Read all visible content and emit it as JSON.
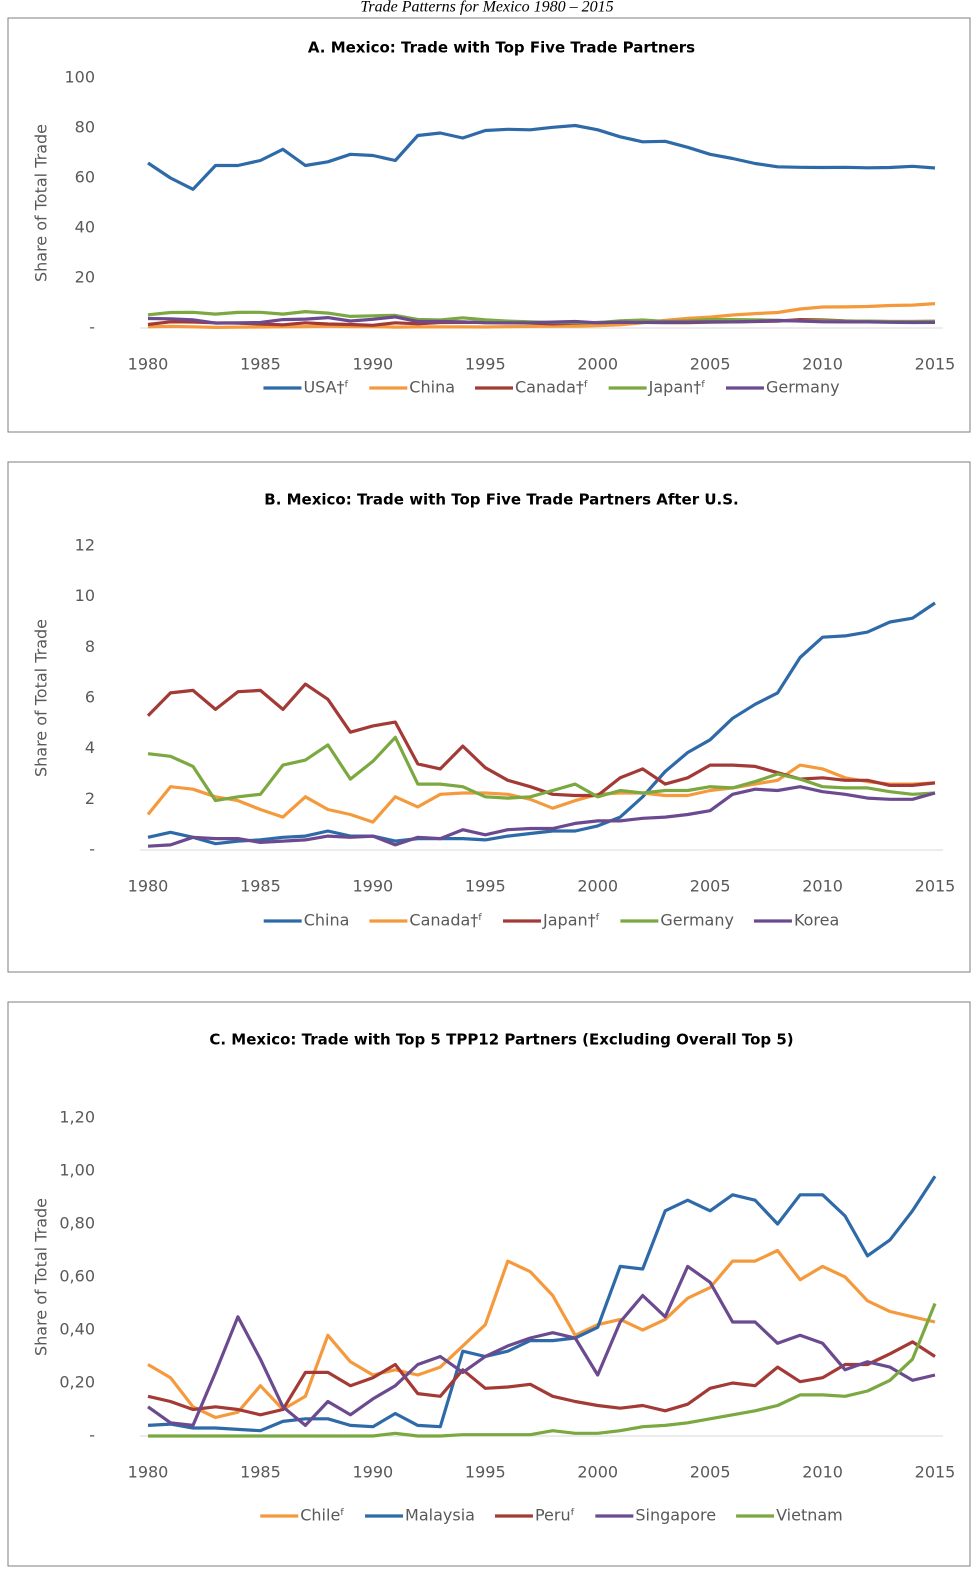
{
  "title": "Trade Patterns for Mexico 1980 – 2015",
  "chart_data": [
    {
      "type": "line",
      "title": "A. Mexico: Trade with Top Five Trade Partners",
      "y_label": "Share of Total Trade",
      "x": [
        1980,
        1981,
        1982,
        1983,
        1984,
        1985,
        1986,
        1987,
        1988,
        1989,
        1990,
        1991,
        1992,
        1993,
        1994,
        1995,
        1996,
        1997,
        1998,
        1999,
        2000,
        2001,
        2002,
        2003,
        2004,
        2005,
        2006,
        2007,
        2008,
        2009,
        2010,
        2011,
        2012,
        2013,
        2014,
        2015
      ],
      "xlim": [
        1980,
        2015
      ],
      "xticks": [
        1980,
        1985,
        1990,
        1995,
        2000,
        2005,
        2010,
        2015
      ],
      "ylim": [
        0,
        100
      ],
      "yticks": [
        {
          "value": 0,
          "label": "-"
        },
        20,
        40,
        60,
        80,
        100
      ],
      "grid": false,
      "legend": "bottom",
      "series": [
        {
          "name": "USA†ᶠ",
          "color": "#2e6aa8",
          "values": [
            66,
            60,
            55.5,
            65,
            65,
            67,
            71.5,
            65,
            66.5,
            69.5,
            69,
            67,
            77,
            78,
            76,
            79,
            79.5,
            79.3,
            80.3,
            81,
            79.3,
            76.5,
            74.5,
            74.7,
            72.3,
            69.5,
            67.8,
            65.8,
            64.5,
            64.3,
            64.2,
            64.3,
            64.1,
            64.2,
            64.7,
            64
          ]
        },
        {
          "name": "China",
          "color": "#f59a3c",
          "values": [
            0.5,
            0.7,
            0.5,
            0.25,
            0.35,
            0.4,
            0.5,
            0.55,
            0.75,
            0.55,
            0.55,
            0.35,
            0.45,
            0.45,
            0.45,
            0.4,
            0.55,
            0.65,
            0.75,
            0.75,
            0.95,
            1.3,
            2.1,
            3.1,
            3.85,
            4.35,
            5.2,
            5.75,
            6.2,
            7.6,
            8.4,
            8.45,
            8.6,
            9,
            9.15,
            9.75
          ]
        },
        {
          "name": "Canada†ᶠ",
          "color": "#a33a35",
          "values": [
            1.4,
            2.5,
            2.4,
            2.1,
            1.95,
            1.6,
            1.3,
            2.1,
            1.6,
            1.4,
            1.1,
            2.1,
            1.7,
            2.2,
            2.25,
            2.25,
            2.2,
            2,
            1.65,
            1.95,
            2.2,
            2.25,
            2.25,
            2.15,
            2.15,
            2.35,
            2.45,
            2.6,
            2.75,
            3.35,
            3.2,
            2.85,
            2.7,
            2.6,
            2.6,
            2.65
          ]
        },
        {
          "name": "Japan†ᶠ",
          "color": "#7ba840",
          "values": [
            5.3,
            6.2,
            6.3,
            5.55,
            6.25,
            6.3,
            5.55,
            6.55,
            5.95,
            4.65,
            4.9,
            5.05,
            3.4,
            3.2,
            4.1,
            3.25,
            2.75,
            2.5,
            2.2,
            2.15,
            2.15,
            2.85,
            3.2,
            2.6,
            2.85,
            3.35,
            3.35,
            3.3,
            3.05,
            2.8,
            2.85,
            2.75,
            2.75,
            2.55,
            2.55,
            2.65
          ]
        },
        {
          "name": "Germany",
          "color": "#6b4a8f",
          "values": [
            3.8,
            3.7,
            3.3,
            1.95,
            2.1,
            2.2,
            3.35,
            3.55,
            4.15,
            2.8,
            3.5,
            4.45,
            2.6,
            2.6,
            2.5,
            2.1,
            2.05,
            2.1,
            2.35,
            2.6,
            2.1,
            2.35,
            2.25,
            2.35,
            2.35,
            2.5,
            2.45,
            2.7,
            3,
            2.8,
            2.5,
            2.45,
            2.45,
            2.3,
            2.2,
            2.25
          ]
        }
      ]
    },
    {
      "type": "line",
      "title": "B. Mexico: Trade with Top Five Trade Partners After U.S.",
      "y_label": "Share of Total Trade",
      "x": [
        1980,
        1981,
        1982,
        1983,
        1984,
        1985,
        1986,
        1987,
        1988,
        1989,
        1990,
        1991,
        1992,
        1993,
        1994,
        1995,
        1996,
        1997,
        1998,
        1999,
        2000,
        2001,
        2002,
        2003,
        2004,
        2005,
        2006,
        2007,
        2008,
        2009,
        2010,
        2011,
        2012,
        2013,
        2014,
        2015
      ],
      "xlim": [
        1980,
        2015
      ],
      "xticks": [
        1980,
        1985,
        1990,
        1995,
        2000,
        2005,
        2010,
        2015
      ],
      "ylim": [
        0,
        12
      ],
      "yticks": [
        {
          "value": 0,
          "label": "-"
        },
        2,
        4,
        6,
        8,
        10,
        12
      ],
      "grid": false,
      "legend": "bottom",
      "series": [
        {
          "name": "China",
          "color": "#2e6aa8",
          "values": [
            0.5,
            0.7,
            0.5,
            0.25,
            0.35,
            0.4,
            0.5,
            0.55,
            0.75,
            0.55,
            0.55,
            0.35,
            0.45,
            0.45,
            0.45,
            0.4,
            0.55,
            0.65,
            0.75,
            0.75,
            0.95,
            1.3,
            2.1,
            3.1,
            3.85,
            4.35,
            5.2,
            5.75,
            6.2,
            7.6,
            8.4,
            8.45,
            8.6,
            9,
            9.15,
            9.75
          ]
        },
        {
          "name": "Canada†ᶠ",
          "color": "#f59a3c",
          "values": [
            1.4,
            2.5,
            2.4,
            2.1,
            1.95,
            1.6,
            1.3,
            2.1,
            1.6,
            1.4,
            1.1,
            2.1,
            1.7,
            2.2,
            2.25,
            2.25,
            2.2,
            2,
            1.65,
            1.95,
            2.2,
            2.25,
            2.25,
            2.15,
            2.15,
            2.35,
            2.45,
            2.6,
            2.75,
            3.35,
            3.2,
            2.85,
            2.7,
            2.6,
            2.6,
            2.65
          ]
        },
        {
          "name": "Japan†ᶠ",
          "color": "#a33a35",
          "values": [
            5.3,
            6.2,
            6.3,
            5.55,
            6.25,
            6.3,
            5.55,
            6.55,
            5.95,
            4.65,
            4.9,
            5.05,
            3.4,
            3.2,
            4.1,
            3.25,
            2.75,
            2.5,
            2.2,
            2.15,
            2.15,
            2.85,
            3.2,
            2.6,
            2.85,
            3.35,
            3.35,
            3.3,
            3.05,
            2.8,
            2.85,
            2.75,
            2.75,
            2.55,
            2.55,
            2.65
          ]
        },
        {
          "name": "Germany",
          "color": "#7ba840",
          "values": [
            3.8,
            3.7,
            3.3,
            1.95,
            2.1,
            2.2,
            3.35,
            3.55,
            4.15,
            2.8,
            3.5,
            4.45,
            2.6,
            2.6,
            2.5,
            2.1,
            2.05,
            2.1,
            2.35,
            2.6,
            2.1,
            2.35,
            2.25,
            2.35,
            2.35,
            2.5,
            2.45,
            2.7,
            3,
            2.8,
            2.5,
            2.45,
            2.45,
            2.3,
            2.2,
            2.25
          ]
        },
        {
          "name": "Korea",
          "color": "#6b4a8f",
          "values": [
            0.15,
            0.2,
            0.5,
            0.45,
            0.45,
            0.3,
            0.35,
            0.4,
            0.55,
            0.5,
            0.55,
            0.2,
            0.5,
            0.45,
            0.8,
            0.6,
            0.8,
            0.85,
            0.85,
            1.05,
            1.15,
            1.15,
            1.25,
            1.3,
            1.4,
            1.55,
            2.2,
            2.4,
            2.35,
            2.5,
            2.3,
            2.2,
            2.05,
            2,
            2,
            2.25
          ]
        }
      ]
    },
    {
      "type": "line",
      "title": "C. Mexico: Trade with Top 5 TPP12 Partners (Excluding Overall Top 5)",
      "y_label": "Share of Total Trade",
      "x": [
        1980,
        1981,
        1982,
        1983,
        1984,
        1985,
        1986,
        1987,
        1988,
        1989,
        1990,
        1991,
        1992,
        1993,
        1994,
        1995,
        1996,
        1997,
        1998,
        1999,
        2000,
        2001,
        2002,
        2003,
        2004,
        2005,
        2006,
        2007,
        2008,
        2009,
        2010,
        2011,
        2012,
        2013,
        2014,
        2015
      ],
      "xlim": [
        1980,
        2015
      ],
      "xticks": [
        1980,
        1985,
        1990,
        1995,
        2000,
        2005,
        2010,
        2015
      ],
      "ylim": [
        0,
        1.2
      ],
      "yticks": [
        {
          "value": 0,
          "label": "-"
        },
        {
          "value": 0.2,
          "label": "0,20"
        },
        {
          "value": 0.4,
          "label": "0,40"
        },
        {
          "value": 0.6,
          "label": "0,60"
        },
        {
          "value": 0.8,
          "label": "0,80"
        },
        {
          "value": 1,
          "label": "1,00"
        },
        {
          "value": 1.2,
          "label": "1,20"
        }
      ],
      "grid": false,
      "legend": "bottom",
      "series": [
        {
          "name": "Chileᶠ",
          "color": "#f59a3c",
          "values": [
            0.27,
            0.22,
            0.11,
            0.07,
            0.09,
            0.19,
            0.1,
            0.15,
            0.38,
            0.28,
            0.23,
            0.25,
            0.23,
            0.26,
            0.34,
            0.42,
            0.66,
            0.62,
            0.53,
            0.38,
            0.42,
            0.44,
            0.4,
            0.44,
            0.52,
            0.56,
            0.66,
            0.66,
            0.7,
            0.59,
            0.64,
            0.6,
            0.51,
            0.47,
            0.45,
            0.43
          ]
        },
        {
          "name": "Malaysia",
          "color": "#2e6aa8",
          "values": [
            0.04,
            0.045,
            0.03,
            0.03,
            0.025,
            0.02,
            0.055,
            0.065,
            0.065,
            0.04,
            0.035,
            0.085,
            0.04,
            0.035,
            0.32,
            0.3,
            0.32,
            0.36,
            0.36,
            0.37,
            0.41,
            0.64,
            0.63,
            0.85,
            0.89,
            0.85,
            0.91,
            0.89,
            0.8,
            0.91,
            0.91,
            0.83,
            0.68,
            0.74,
            0.85,
            0.98
          ]
        },
        {
          "name": "Peruᶠ",
          "color": "#a33a35",
          "values": [
            0.15,
            0.13,
            0.1,
            0.11,
            0.1,
            0.08,
            0.1,
            0.24,
            0.24,
            0.19,
            0.22,
            0.27,
            0.16,
            0.15,
            0.25,
            0.18,
            0.185,
            0.195,
            0.15,
            0.13,
            0.115,
            0.105,
            0.115,
            0.095,
            0.12,
            0.18,
            0.2,
            0.19,
            0.26,
            0.205,
            0.22,
            0.27,
            0.27,
            0.31,
            0.355,
            0.3
          ]
        },
        {
          "name": "Singapore",
          "color": "#6b4a8f",
          "values": [
            0.11,
            0.05,
            0.04,
            0.24,
            0.45,
            0.29,
            0.11,
            0.04,
            0.13,
            0.08,
            0.14,
            0.19,
            0.27,
            0.3,
            0.24,
            0.3,
            0.34,
            0.37,
            0.39,
            0.37,
            0.23,
            0.43,
            0.53,
            0.45,
            0.64,
            0.58,
            0.43,
            0.43,
            0.35,
            0.38,
            0.35,
            0.25,
            0.28,
            0.26,
            0.21,
            0.23
          ]
        },
        {
          "name": "Vietnam",
          "color": "#7ba840",
          "values": [
            0,
            0,
            0,
            0,
            0,
            0,
            0,
            0,
            0,
            0,
            0,
            0.01,
            0,
            0,
            0.005,
            0.005,
            0.005,
            0.005,
            0.02,
            0.01,
            0.01,
            0.02,
            0.035,
            0.04,
            0.05,
            0.065,
            0.08,
            0.095,
            0.115,
            0.155,
            0.155,
            0.15,
            0.17,
            0.21,
            0.29,
            0.5
          ]
        }
      ]
    }
  ]
}
